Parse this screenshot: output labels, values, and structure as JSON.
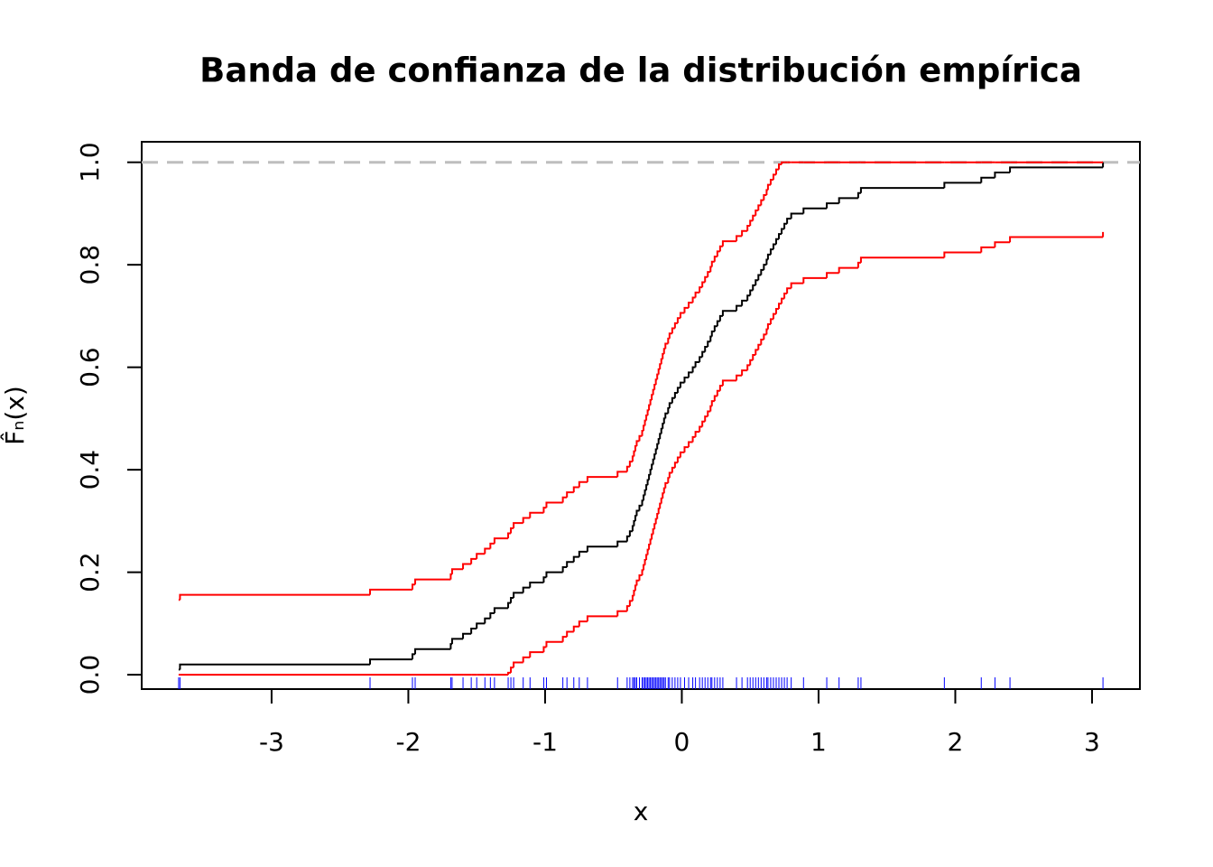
{
  "chart_data": {
    "type": "step",
    "title": "Banda de confianza de la distribución empírica",
    "x_label": "x",
    "y_label": "F̂ₙ(x)",
    "xlim": [
      -3.95,
      3.35
    ],
    "ylim": [
      -0.028,
      1.04
    ],
    "xticks": [
      -3,
      -2,
      -1,
      0,
      1,
      2,
      3
    ],
    "yticks": [
      {
        "value": 0,
        "label": "0.0"
      },
      0.2,
      0.4,
      0.6,
      0.8,
      {
        "value": 1,
        "label": "1.0"
      }
    ],
    "reference_line": {
      "value": 1,
      "color": "#bebebe"
    },
    "rug_color": "#0000ff",
    "x": [
      -3.68,
      -3.67,
      -2.28,
      -1.97,
      -1.95,
      -1.69,
      -1.68,
      -1.6,
      -1.54,
      -1.5,
      -1.44,
      -1.4,
      -1.37,
      -1.27,
      -1.25,
      -1.23,
      -1.16,
      -1.11,
      -1.01,
      -0.99,
      -0.87,
      -0.84,
      -0.79,
      -0.75,
      -0.69,
      -0.47,
      -0.4,
      -0.38,
      -0.36,
      -0.35,
      -0.34,
      -0.33,
      -0.31,
      -0.29,
      -0.28,
      -0.27,
      -0.26,
      -0.25,
      -0.24,
      -0.23,
      -0.22,
      -0.21,
      -0.2,
      -0.19,
      -0.18,
      -0.17,
      -0.16,
      -0.15,
      -0.14,
      -0.13,
      -0.12,
      -0.1,
      -0.09,
      -0.07,
      -0.05,
      -0.03,
      -0.01,
      0.02,
      0.05,
      0.08,
      0.1,
      0.13,
      0.15,
      0.17,
      0.19,
      0.21,
      0.22,
      0.24,
      0.26,
      0.28,
      0.3,
      0.4,
      0.44,
      0.48,
      0.5,
      0.52,
      0.54,
      0.56,
      0.58,
      0.6,
      0.62,
      0.63,
      0.65,
      0.67,
      0.69,
      0.71,
      0.73,
      0.75,
      0.77,
      0.8,
      0.89,
      1.06,
      1.15,
      1.29,
      1.31,
      1.92,
      2.19,
      2.29,
      2.4,
      3.08
    ],
    "series": [
      {
        "color": "#000000",
        "values": [
          0.01,
          0.02,
          0.03,
          0.04,
          0.05,
          0.06,
          0.07,
          0.08,
          0.09,
          0.1,
          0.11,
          0.12,
          0.13,
          0.14,
          0.15,
          0.16,
          0.17,
          0.18,
          0.19,
          0.2,
          0.21,
          0.22,
          0.23,
          0.24,
          0.25,
          0.26,
          0.27,
          0.28,
          0.29,
          0.3,
          0.31,
          0.32,
          0.33,
          0.34,
          0.35,
          0.36,
          0.37,
          0.38,
          0.39,
          0.4,
          0.41,
          0.42,
          0.43,
          0.44,
          0.45,
          0.46,
          0.47,
          0.48,
          0.49,
          0.5,
          0.51,
          0.52,
          0.53,
          0.54,
          0.55,
          0.56,
          0.57,
          0.58,
          0.59,
          0.6,
          0.61,
          0.62,
          0.63,
          0.64,
          0.65,
          0.66,
          0.67,
          0.68,
          0.69,
          0.7,
          0.71,
          0.72,
          0.73,
          0.74,
          0.75,
          0.76,
          0.77,
          0.78,
          0.79,
          0.8,
          0.81,
          0.82,
          0.83,
          0.84,
          0.85,
          0.86,
          0.87,
          0.88,
          0.89,
          0.9,
          0.91,
          0.92,
          0.93,
          0.94,
          0.95,
          0.96,
          0.97,
          0.98,
          0.99,
          1
        ]
      },
      {
        "color": "#ff0000",
        "values": [
          0.146,
          0.156,
          0.166,
          0.176,
          0.186,
          0.196,
          0.206,
          0.216,
          0.226,
          0.236,
          0.246,
          0.256,
          0.266,
          0.276,
          0.286,
          0.296,
          0.306,
          0.316,
          0.326,
          0.336,
          0.346,
          0.356,
          0.366,
          0.376,
          0.386,
          0.396,
          0.406,
          0.416,
          0.426,
          0.436,
          0.446,
          0.456,
          0.466,
          0.476,
          0.486,
          0.496,
          0.506,
          0.516,
          0.526,
          0.536,
          0.546,
          0.556,
          0.566,
          0.576,
          0.586,
          0.596,
          0.606,
          0.616,
          0.626,
          0.636,
          0.646,
          0.656,
          0.666,
          0.676,
          0.686,
          0.696,
          0.706,
          0.716,
          0.726,
          0.736,
          0.746,
          0.756,
          0.766,
          0.776,
          0.786,
          0.796,
          0.806,
          0.816,
          0.826,
          0.836,
          0.846,
          0.856,
          0.866,
          0.876,
          0.886,
          0.896,
          0.906,
          0.916,
          0.926,
          0.936,
          0.946,
          0.956,
          0.966,
          0.976,
          0.986,
          0.996,
          1,
          1,
          1,
          1,
          1,
          1,
          1,
          1,
          1,
          1,
          1,
          1,
          1,
          1
        ]
      },
      {
        "color": "#ff0000",
        "values": [
          0,
          0,
          0,
          0,
          0,
          0,
          0,
          0,
          0,
          0,
          0,
          0,
          0,
          0.004,
          0.014,
          0.024,
          0.034,
          0.044,
          0.054,
          0.064,
          0.074,
          0.084,
          0.094,
          0.104,
          0.114,
          0.124,
          0.134,
          0.144,
          0.154,
          0.164,
          0.174,
          0.184,
          0.194,
          0.204,
          0.214,
          0.224,
          0.234,
          0.244,
          0.254,
          0.264,
          0.274,
          0.284,
          0.294,
          0.304,
          0.314,
          0.324,
          0.334,
          0.344,
          0.354,
          0.364,
          0.374,
          0.384,
          0.394,
          0.404,
          0.414,
          0.424,
          0.434,
          0.444,
          0.454,
          0.464,
          0.474,
          0.484,
          0.494,
          0.504,
          0.514,
          0.524,
          0.534,
          0.544,
          0.554,
          0.564,
          0.574,
          0.584,
          0.594,
          0.604,
          0.614,
          0.624,
          0.634,
          0.644,
          0.654,
          0.664,
          0.674,
          0.684,
          0.694,
          0.704,
          0.714,
          0.724,
          0.734,
          0.744,
          0.754,
          0.764,
          0.774,
          0.784,
          0.794,
          0.804,
          0.814,
          0.824,
          0.834,
          0.844,
          0.854,
          0.864
        ]
      }
    ]
  }
}
